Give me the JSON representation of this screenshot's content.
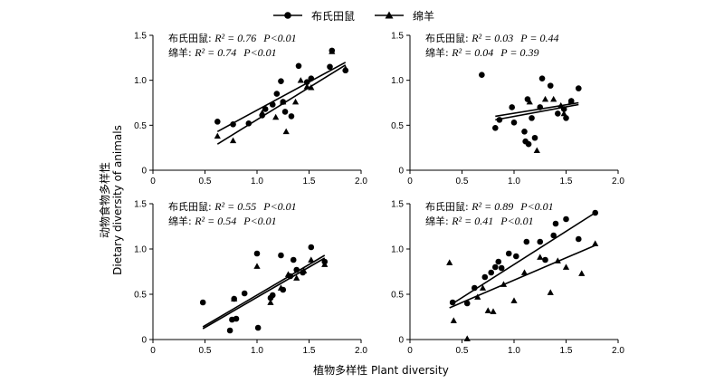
{
  "legend": {
    "vole_label": "布氏田鼠",
    "sheep_label": "绵羊"
  },
  "labels": {
    "xlabel": "植物多样性 Plant diversity",
    "ylabel_cn": "动物食物多样性",
    "ylabel_en": "Dietary diversity of animals"
  },
  "chart_data": [
    {
      "type": "scatter",
      "panel": "top-left",
      "xlim": [
        0,
        2.0
      ],
      "ylim": [
        0,
        1.5
      ],
      "xticks": [
        "0",
        "0.5",
        "1.0",
        "1.5",
        "2.0"
      ],
      "yticks": [
        "0",
        "0.5",
        "1.0",
        "1.5"
      ],
      "annotations": [
        {
          "prefix": "布氏田鼠: ",
          "r2": "R² = 0.76",
          "p": "P<0.01"
        },
        {
          "prefix": "绵羊: ",
          "r2": "R² = 0.74",
          "p": "P<0.01"
        }
      ],
      "series": [
        {
          "name": "布氏田鼠",
          "marker": "circle",
          "points": [
            [
              0.62,
              0.54
            ],
            [
              0.77,
              0.51
            ],
            [
              0.92,
              0.52
            ],
            [
              1.05,
              0.61
            ],
            [
              1.08,
              0.68
            ],
            [
              1.15,
              0.73
            ],
            [
              1.19,
              0.85
            ],
            [
              1.23,
              0.99
            ],
            [
              1.25,
              0.76
            ],
            [
              1.27,
              0.65
            ],
            [
              1.33,
              0.6
            ],
            [
              1.4,
              1.16
            ],
            [
              1.48,
              0.98
            ],
            [
              1.52,
              1.02
            ],
            [
              1.7,
              1.15
            ],
            [
              1.72,
              1.33
            ],
            [
              1.85,
              1.11
            ]
          ],
          "fit": [
            [
              0.62,
              0.43
            ],
            [
              1.85,
              1.2
            ]
          ]
        },
        {
          "name": "绵羊",
          "marker": "triangle",
          "points": [
            [
              0.62,
              0.38
            ],
            [
              0.77,
              0.33
            ],
            [
              1.05,
              0.64
            ],
            [
              1.18,
              0.59
            ],
            [
              1.25,
              0.76
            ],
            [
              1.28,
              0.43
            ],
            [
              1.37,
              0.76
            ],
            [
              1.42,
              1.0
            ],
            [
              1.48,
              0.93
            ],
            [
              1.52,
              0.92
            ],
            [
              1.72,
              1.32
            ],
            [
              1.85,
              1.13
            ]
          ],
          "fit": [
            [
              0.62,
              0.29
            ],
            [
              1.85,
              1.17
            ]
          ]
        }
      ]
    },
    {
      "type": "scatter",
      "panel": "top-right",
      "xlim": [
        0,
        2.0
      ],
      "ylim": [
        0,
        1.5
      ],
      "xticks": [
        "0",
        "0.5",
        "1.0",
        "1.5",
        "2.0"
      ],
      "yticks": [
        "0",
        "0.5",
        "1.0",
        "1.5"
      ],
      "annotations": [
        {
          "prefix": "布氏田鼠: ",
          "r2": "R² = 0.03",
          "p": "P = 0.44"
        },
        {
          "prefix": "绵羊: ",
          "r2": "R² = 0.04",
          "p": "P = 0.39"
        }
      ],
      "series": [
        {
          "name": "布氏田鼠",
          "marker": "circle",
          "points": [
            [
              0.69,
              1.06
            ],
            [
              0.82,
              0.47
            ],
            [
              0.86,
              0.56
            ],
            [
              0.98,
              0.7
            ],
            [
              1.0,
              0.53
            ],
            [
              1.1,
              0.43
            ],
            [
              1.11,
              0.32
            ],
            [
              1.13,
              0.79
            ],
            [
              1.14,
              0.29
            ],
            [
              1.17,
              0.58
            ],
            [
              1.2,
              0.36
            ],
            [
              1.25,
              0.7
            ],
            [
              1.27,
              1.02
            ],
            [
              1.35,
              0.94
            ],
            [
              1.42,
              0.63
            ],
            [
              1.48,
              0.68
            ],
            [
              1.55,
              0.77
            ],
            [
              1.62,
              0.91
            ],
            [
              1.5,
              0.58
            ]
          ],
          "fit": [
            [
              0.82,
              0.56
            ],
            [
              1.62,
              0.73
            ]
          ]
        },
        {
          "name": "绵羊",
          "marker": "triangle",
          "points": [
            [
              1.15,
              0.76
            ],
            [
              1.22,
              0.22
            ],
            [
              1.3,
              0.79
            ],
            [
              1.38,
              0.79
            ],
            [
              1.45,
              0.72
            ],
            [
              1.48,
              0.63
            ],
            [
              1.55,
              0.77
            ]
          ],
          "fit": [
            [
              0.82,
              0.6
            ],
            [
              1.62,
              0.75
            ]
          ]
        }
      ]
    },
    {
      "type": "scatter",
      "panel": "bottom-left",
      "xlim": [
        0,
        2.0
      ],
      "ylim": [
        0,
        1.5
      ],
      "xticks": [
        "0",
        "0.5",
        "1.0",
        "1.5",
        "2.0"
      ],
      "yticks": [
        "0",
        "0.5",
        "1.0",
        "1.5"
      ],
      "annotations": [
        {
          "prefix": "布氏田鼠: ",
          "r2": "R² = 0.55",
          "p": "P<0.01"
        },
        {
          "prefix": "绵羊: ",
          "r2": "R² = 0.54",
          "p": "P<0.01"
        }
      ],
      "series": [
        {
          "name": "布氏田鼠",
          "marker": "circle",
          "points": [
            [
              0.48,
              0.41
            ],
            [
              0.74,
              0.1
            ],
            [
              0.76,
              0.22
            ],
            [
              0.8,
              0.23
            ],
            [
              0.78,
              0.45
            ],
            [
              0.88,
              0.51
            ],
            [
              1.0,
              0.95
            ],
            [
              1.01,
              0.13
            ],
            [
              1.13,
              0.46
            ],
            [
              1.15,
              0.49
            ],
            [
              1.23,
              0.93
            ],
            [
              1.25,
              0.55
            ],
            [
              1.32,
              0.7
            ],
            [
              1.35,
              0.88
            ],
            [
              1.38,
              0.77
            ],
            [
              1.44,
              0.74
            ],
            [
              1.52,
              1.02
            ],
            [
              1.65,
              0.86
            ]
          ],
          "fit": [
            [
              0.48,
              0.14
            ],
            [
              1.65,
              0.93
            ]
          ]
        },
        {
          "name": "绵羊",
          "marker": "triangle",
          "points": [
            [
              0.78,
              0.45
            ],
            [
              1.0,
              0.81
            ],
            [
              1.13,
              0.41
            ],
            [
              1.23,
              0.57
            ],
            [
              1.3,
              0.72
            ],
            [
              1.38,
              0.68
            ],
            [
              1.45,
              0.76
            ],
            [
              1.52,
              0.88
            ],
            [
              1.65,
              0.83
            ]
          ],
          "fit": [
            [
              0.48,
              0.12
            ],
            [
              1.65,
              0.9
            ]
          ]
        }
      ]
    },
    {
      "type": "scatter",
      "panel": "bottom-right",
      "xlim": [
        0,
        2.0
      ],
      "ylim": [
        0,
        1.5
      ],
      "xticks": [
        "0",
        "0.5",
        "1.0",
        "1.5",
        "2.0"
      ],
      "yticks": [
        "0",
        "0.5",
        "1.0",
        "1.5"
      ],
      "annotations": [
        {
          "prefix": "布氏田鼠: ",
          "r2": "R² = 0.89",
          "p": "P<0.01"
        },
        {
          "prefix": "绵羊: ",
          "r2": "R² = 0.41",
          "p": "P<0.01"
        }
      ],
      "series": [
        {
          "name": "布氏田鼠",
          "marker": "circle",
          "points": [
            [
              0.41,
              0.41
            ],
            [
              0.55,
              0.4
            ],
            [
              0.62,
              0.57
            ],
            [
              0.72,
              0.69
            ],
            [
              0.78,
              0.74
            ],
            [
              0.82,
              0.8
            ],
            [
              0.85,
              0.86
            ],
            [
              0.88,
              0.79
            ],
            [
              0.95,
              0.95
            ],
            [
              1.02,
              0.92
            ],
            [
              1.12,
              1.08
            ],
            [
              1.25,
              1.08
            ],
            [
              1.3,
              0.88
            ],
            [
              1.38,
              1.15
            ],
            [
              1.4,
              1.28
            ],
            [
              1.5,
              1.33
            ],
            [
              1.62,
              1.11
            ],
            [
              1.78,
              1.4
            ]
          ],
          "fit": [
            [
              0.4,
              0.39
            ],
            [
              1.78,
              1.4
            ]
          ]
        },
        {
          "name": "绵羊",
          "marker": "triangle",
          "points": [
            [
              0.38,
              0.85
            ],
            [
              0.42,
              0.21
            ],
            [
              0.55,
              0.01
            ],
            [
              0.65,
              0.47
            ],
            [
              0.7,
              0.57
            ],
            [
              0.75,
              0.32
            ],
            [
              0.8,
              0.31
            ],
            [
              0.9,
              0.61
            ],
            [
              1.0,
              0.43
            ],
            [
              1.1,
              0.74
            ],
            [
              1.25,
              0.91
            ],
            [
              1.35,
              0.52
            ],
            [
              1.42,
              0.87
            ],
            [
              1.5,
              0.8
            ],
            [
              1.65,
              0.73
            ],
            [
              1.78,
              1.06
            ]
          ],
          "fit": [
            [
              0.38,
              0.35
            ],
            [
              1.78,
              1.04
            ]
          ]
        }
      ]
    }
  ]
}
